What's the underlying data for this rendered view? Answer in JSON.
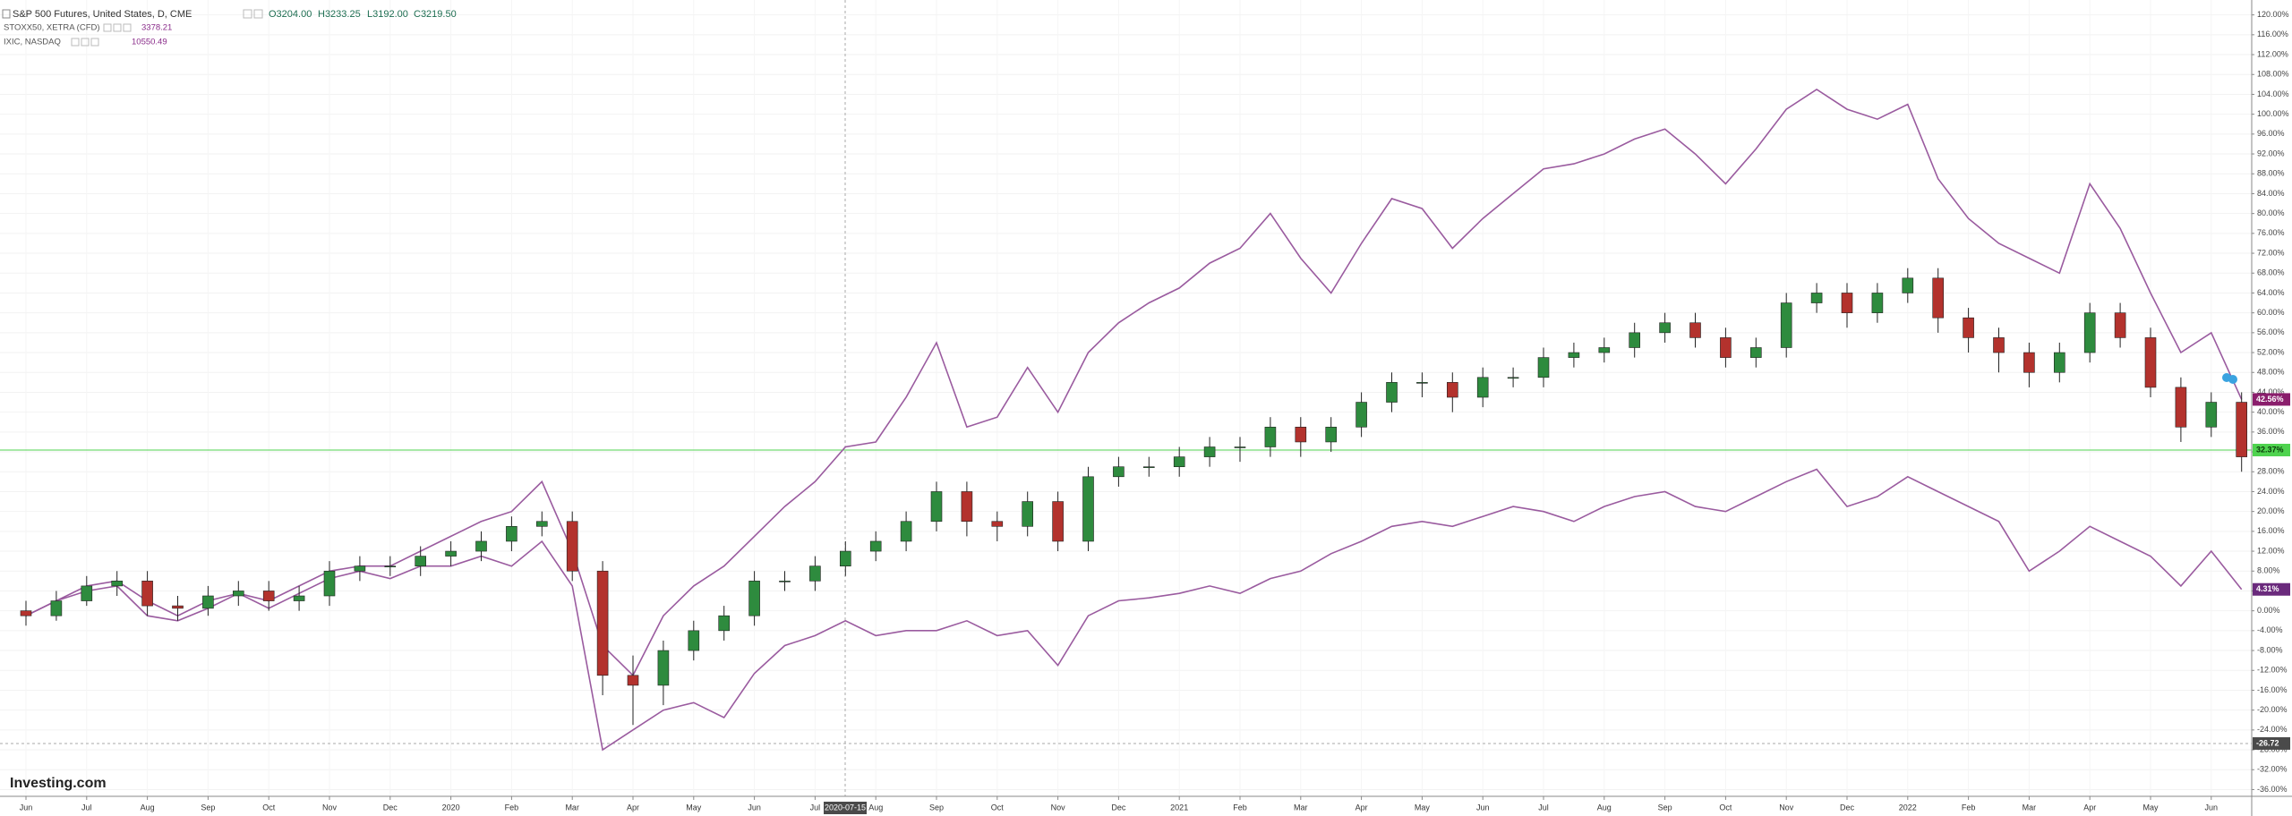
{
  "chart_data": {
    "type": "candlestick",
    "watermark": "Investing.com",
    "categories": [
      "Jun",
      null,
      "Jul",
      null,
      "Aug",
      null,
      "Sep",
      null,
      "Oct",
      null,
      "Nov",
      null,
      "Dec",
      null,
      "2020",
      null,
      "Feb",
      null,
      "Mar",
      null,
      "Apr",
      null,
      "May",
      null,
      "Jun",
      null,
      "Jul",
      null,
      "Aug",
      null,
      "Sep",
      null,
      "Oct",
      null,
      "Nov",
      null,
      "Dec",
      null,
      "2021",
      null,
      "Feb",
      null,
      "Mar",
      null,
      "Apr",
      null,
      "May",
      null,
      "Jun",
      null,
      "Jul",
      null,
      "Aug",
      null,
      "Sep",
      null,
      "Oct",
      null,
      "Nov",
      null,
      "Dec",
      null,
      "2022",
      null,
      "Feb",
      null,
      "Mar",
      null,
      "Apr",
      null,
      "May",
      null,
      "Jun",
      null
    ],
    "ylim": [
      -37,
      123
    ],
    "yticks": [
      {
        "value": 120,
        "label": "120.00%"
      },
      {
        "value": 116,
        "label": "116.00%"
      },
      {
        "value": 112,
        "label": "112.00%"
      },
      {
        "value": 108,
        "label": "108.00%"
      },
      {
        "value": 104,
        "label": "104.00%"
      },
      {
        "value": 100,
        "label": "100.00%"
      },
      {
        "value": 96,
        "label": "96.00%"
      },
      {
        "value": 92,
        "label": "92.00%"
      },
      {
        "value": 88,
        "label": "88.00%"
      },
      {
        "value": 84,
        "label": "84.00%"
      },
      {
        "value": 80,
        "label": "80.00%"
      },
      {
        "value": 76,
        "label": "76.00%"
      },
      {
        "value": 72,
        "label": "72.00%"
      },
      {
        "value": 68,
        "label": "68.00%"
      },
      {
        "value": 64,
        "label": "64.00%"
      },
      {
        "value": 60,
        "label": "60.00%"
      },
      {
        "value": 56,
        "label": "56.00%"
      },
      {
        "value": 52,
        "label": "52.00%"
      },
      {
        "value": 48,
        "label": "48.00%"
      },
      {
        "value": 44,
        "label": "44.00%"
      },
      {
        "value": 40,
        "label": "40.00%"
      },
      {
        "value": 36,
        "label": "36.00%"
      },
      {
        "value": 32,
        "label": "32.00%"
      },
      {
        "value": 28,
        "label": "28.00%"
      },
      {
        "value": 24,
        "label": "24.00%"
      },
      {
        "value": 20,
        "label": "20.00%"
      },
      {
        "value": 16,
        "label": "16.00%"
      },
      {
        "value": 12,
        "label": "12.00%"
      },
      {
        "value": 8,
        "label": "8.00%"
      },
      {
        "value": 4,
        "label": "4.00%"
      },
      {
        "value": 0,
        "label": "0.00%"
      },
      {
        "value": -4,
        "label": "-4.00%"
      },
      {
        "value": -8,
        "label": "-8.00%"
      },
      {
        "value": -12,
        "label": "-12.00%"
      },
      {
        "value": -16,
        "label": "-16.00%"
      },
      {
        "value": -20,
        "label": "-20.00%"
      },
      {
        "value": -24,
        "label": "-24.00%"
      },
      {
        "value": -28,
        "label": "-28.00%"
      },
      {
        "value": -32,
        "label": "-32.00%"
      },
      {
        "value": -36,
        "label": "-36.00%"
      }
    ],
    "grid": true,
    "series": [
      {
        "name": "S&P 500 Futures, United States, D, CME",
        "type": "candlestick",
        "up_color": "#2e8b3e",
        "down_color": "#b3322d",
        "ohlc_labels": [
          "O3204.00",
          "H3233.25",
          "L3192.00",
          "C3219.50"
        ],
        "open": [
          0,
          -1,
          2,
          5,
          6,
          1,
          0.5,
          3,
          4,
          2,
          3,
          8,
          9,
          9,
          11,
          12,
          14,
          17,
          18,
          8,
          -13,
          -15,
          -8,
          -4,
          -1,
          6,
          6,
          9,
          12,
          14,
          18,
          24,
          18,
          17,
          22,
          14,
          27,
          29,
          29,
          31,
          33,
          33,
          37,
          34,
          37,
          42,
          46,
          46,
          43,
          47,
          47,
          51,
          52,
          53,
          56,
          58,
          55,
          51,
          53,
          62,
          64,
          60,
          64,
          67,
          59,
          55,
          52,
          48,
          52,
          60,
          55,
          45,
          37,
          42
        ],
        "high": [
          2,
          4,
          7,
          8,
          8,
          3,
          5,
          6,
          6,
          5,
          10,
          11,
          11,
          13,
          14,
          16,
          19,
          20,
          20,
          10,
          -9,
          -6,
          -2,
          1,
          8,
          8,
          11,
          14,
          16,
          20,
          26,
          26,
          20,
          24,
          24,
          29,
          31,
          31,
          33,
          35,
          35,
          39,
          39,
          39,
          44,
          48,
          48,
          48,
          49,
          49,
          53,
          54,
          55,
          58,
          60,
          60,
          57,
          55,
          64,
          66,
          66,
          66,
          69,
          69,
          61,
          57,
          54,
          54,
          62,
          62,
          57,
          47,
          44,
          44
        ],
        "low": [
          -3,
          -2,
          1,
          3,
          -1,
          -2,
          -1,
          1,
          0,
          0,
          1,
          6,
          7,
          7,
          9,
          10,
          12,
          15,
          6,
          -17,
          -23,
          -19,
          -10,
          -6,
          -3,
          4,
          4,
          7,
          10,
          12,
          16,
          15,
          14,
          15,
          12,
          12,
          25,
          27,
          27,
          29,
          30,
          31,
          31,
          32,
          35,
          40,
          43,
          40,
          41,
          45,
          45,
          49,
          50,
          51,
          54,
          53,
          49,
          49,
          51,
          60,
          57,
          58,
          62,
          56,
          52,
          48,
          45,
          46,
          50,
          53,
          43,
          34,
          35,
          28
        ],
        "close": [
          -1,
          2,
          5,
          6,
          1,
          0.5,
          3,
          4,
          2,
          3,
          8,
          9,
          9,
          11,
          12,
          14,
          17,
          18,
          8,
          -13,
          -15,
          -8,
          -4,
          -1,
          6,
          6,
          9,
          12,
          14,
          18,
          24,
          18,
          17,
          22,
          14,
          27,
          29,
          29,
          31,
          33,
          33,
          37,
          34,
          37,
          42,
          46,
          46,
          43,
          47,
          47,
          51,
          52,
          53,
          56,
          58,
          55,
          51,
          53,
          62,
          64,
          60,
          64,
          67,
          59,
          55,
          52,
          48,
          52,
          60,
          55,
          45,
          37,
          42,
          31
        ]
      },
      {
        "name": "STOXX50, XETRA (CFD)",
        "type": "line",
        "color": "#9a5b9f",
        "tag_color": "#6a2a7c",
        "last_value": 3378.21,
        "tag_label": "4.31%",
        "values": [
          -1,
          2,
          4,
          5,
          -1,
          -2,
          0.5,
          3.5,
          0.5,
          3.5,
          6.5,
          8,
          6.5,
          9,
          9,
          11,
          9,
          14,
          5,
          -28,
          -24,
          -20,
          -18.5,
          -21.5,
          -12.6,
          -7,
          -5,
          -2,
          -5,
          -4,
          -4,
          -2,
          -5,
          -4,
          -11,
          -1,
          2,
          2.6,
          3.5,
          5,
          3.5,
          6.5,
          8,
          11.5,
          14,
          17,
          18,
          17,
          19,
          21,
          20,
          18,
          21,
          23,
          24,
          21,
          20,
          23,
          26,
          28.5,
          21,
          23,
          27,
          24,
          21,
          18,
          8,
          12,
          17,
          14,
          11,
          5,
          12,
          4.31
        ]
      },
      {
        "name": "IXIC, NASDAQ",
        "type": "line",
        "color": "#9a5b9f",
        "tag_color": "#8a1e6c",
        "last_value": 10550.49,
        "tag_label": "42.56%",
        "values": [
          -1,
          2,
          5,
          6,
          2,
          -1,
          2,
          3.5,
          2,
          5,
          8,
          9,
          9,
          12,
          15,
          18,
          20,
          26,
          12,
          -7,
          -13,
          -1,
          5,
          9,
          15,
          21,
          26,
          33,
          34,
          43,
          54,
          37,
          39,
          49,
          40,
          52,
          58,
          62,
          65,
          70,
          73,
          80,
          71,
          64,
          74,
          83,
          81,
          73,
          79,
          84,
          89,
          90,
          92,
          95,
          97,
          92,
          86,
          93,
          101,
          105,
          101,
          99,
          102,
          87,
          79,
          74,
          71,
          68,
          86,
          77,
          64,
          52,
          56,
          42.56
        ]
      }
    ],
    "price_line": {
      "value": 32.37,
      "label": "32.37%",
      "color": "#4fd34f"
    },
    "crosshair": {
      "x_label": "2020-07-15",
      "y": {
        "value": -26.72,
        "label": "-26.72"
      }
    }
  }
}
